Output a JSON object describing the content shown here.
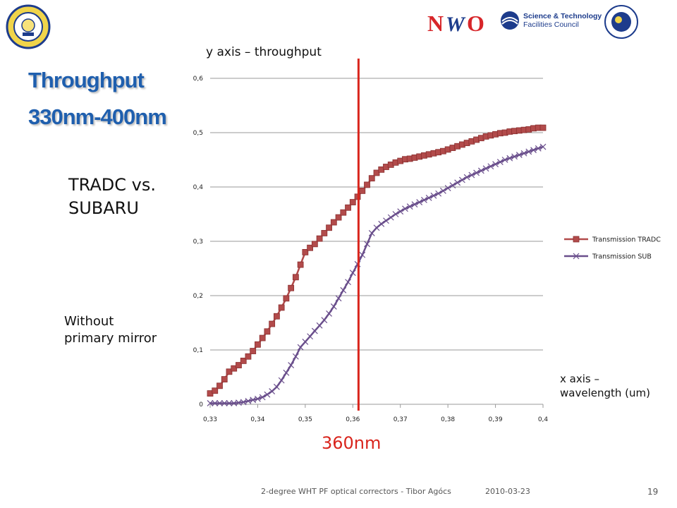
{
  "logos": {
    "left_seal_text": "ISAAC NEWTON GROUP",
    "left_seal_subtext": "LA PALMA",
    "nwo_text": "NWO",
    "stfc_line1": "Science & Technology",
    "stfc_line2": "Facilities Council"
  },
  "slide": {
    "title_line1": "Throughput",
    "title_line2": "330nm-400nm",
    "compare_line1": "TRADC vs.",
    "compare_line2": "SUBARU",
    "note_line1": "Without",
    "note_line2": "primary mirror",
    "y_axis_note": "y axis – throughput",
    "x_axis_note_line1": "x axis –",
    "x_axis_note_line2": "wavelength (um)",
    "marker_label": "360nm"
  },
  "footer": {
    "text": "2-degree WHT PF optical correctors - Tibor Agócs",
    "date": "2010-03-23",
    "page": "19"
  },
  "colors": {
    "tradc": "#b24b4b",
    "tradc_edge": "#8a2f2f",
    "sub": "#6a4f8c",
    "marker": "#d9251d",
    "title": "#1f5fae",
    "grid": "#9a9a9a"
  },
  "chart_data": {
    "type": "line",
    "xlim": [
      0.33,
      0.4
    ],
    "ylim": [
      0,
      0.6
    ],
    "x_ticks": [
      "0,33",
      "0,34",
      "0,35",
      "0,36",
      "0,37",
      "0,38",
      "0,39",
      "0,4"
    ],
    "y_ticks": [
      "0",
      "0,1",
      "0,2",
      "0,3",
      "0,4",
      "0,5",
      "0,6"
    ],
    "legend_position": "right",
    "grid": "horizontal",
    "vertical_marker_x": 0.3612,
    "series": [
      {
        "name": "Transmission TRADC",
        "marker": "square",
        "x": [
          0.33,
          0.331,
          0.332,
          0.333,
          0.334,
          0.335,
          0.336,
          0.337,
          0.338,
          0.339,
          0.34,
          0.341,
          0.342,
          0.343,
          0.344,
          0.345,
          0.346,
          0.347,
          0.348,
          0.349,
          0.35,
          0.351,
          0.352,
          0.353,
          0.354,
          0.355,
          0.356,
          0.357,
          0.358,
          0.359,
          0.36,
          0.361,
          0.362,
          0.363,
          0.364,
          0.365,
          0.366,
          0.367,
          0.368,
          0.369,
          0.37,
          0.371,
          0.372,
          0.373,
          0.374,
          0.375,
          0.376,
          0.377,
          0.378,
          0.379,
          0.38,
          0.381,
          0.382,
          0.383,
          0.384,
          0.385,
          0.386,
          0.387,
          0.388,
          0.389,
          0.39,
          0.391,
          0.392,
          0.393,
          0.394,
          0.395,
          0.396,
          0.397,
          0.398,
          0.399,
          0.4
        ],
        "y": [
          0.02,
          0.025,
          0.034,
          0.046,
          0.06,
          0.066,
          0.072,
          0.08,
          0.088,
          0.098,
          0.11,
          0.122,
          0.134,
          0.148,
          0.162,
          0.178,
          0.195,
          0.214,
          0.234,
          0.257,
          0.28,
          0.288,
          0.295,
          0.305,
          0.315,
          0.325,
          0.335,
          0.344,
          0.353,
          0.362,
          0.372,
          0.382,
          0.393,
          0.404,
          0.416,
          0.426,
          0.432,
          0.437,
          0.441,
          0.445,
          0.448,
          0.451,
          0.452,
          0.454,
          0.456,
          0.458,
          0.46,
          0.462,
          0.464,
          0.466,
          0.469,
          0.472,
          0.475,
          0.478,
          0.481,
          0.484,
          0.487,
          0.49,
          0.493,
          0.495,
          0.497,
          0.499,
          0.5,
          0.502,
          0.503,
          0.504,
          0.505,
          0.506,
          0.508,
          0.509,
          0.509
        ]
      },
      {
        "name": "Transmission SUB",
        "marker": "x",
        "x": [
          0.33,
          0.331,
          0.332,
          0.333,
          0.334,
          0.335,
          0.336,
          0.337,
          0.338,
          0.339,
          0.34,
          0.341,
          0.342,
          0.343,
          0.344,
          0.345,
          0.346,
          0.347,
          0.348,
          0.349,
          0.35,
          0.351,
          0.352,
          0.353,
          0.354,
          0.355,
          0.356,
          0.357,
          0.358,
          0.359,
          0.36,
          0.361,
          0.362,
          0.363,
          0.364,
          0.365,
          0.366,
          0.367,
          0.368,
          0.369,
          0.37,
          0.371,
          0.372,
          0.373,
          0.374,
          0.375,
          0.376,
          0.377,
          0.378,
          0.379,
          0.38,
          0.381,
          0.382,
          0.383,
          0.384,
          0.385,
          0.386,
          0.387,
          0.388,
          0.389,
          0.39,
          0.391,
          0.392,
          0.393,
          0.394,
          0.395,
          0.396,
          0.397,
          0.398,
          0.399,
          0.4
        ],
        "y": [
          0.002,
          0.002,
          0.002,
          0.002,
          0.002,
          0.002,
          0.003,
          0.004,
          0.006,
          0.008,
          0.01,
          0.013,
          0.018,
          0.024,
          0.032,
          0.044,
          0.058,
          0.072,
          0.088,
          0.105,
          0.115,
          0.125,
          0.135,
          0.145,
          0.155,
          0.167,
          0.18,
          0.195,
          0.21,
          0.225,
          0.242,
          0.258,
          0.275,
          0.295,
          0.315,
          0.325,
          0.332,
          0.338,
          0.344,
          0.35,
          0.355,
          0.36,
          0.364,
          0.368,
          0.372,
          0.376,
          0.38,
          0.384,
          0.388,
          0.393,
          0.398,
          0.403,
          0.408,
          0.413,
          0.418,
          0.422,
          0.426,
          0.43,
          0.434,
          0.438,
          0.442,
          0.446,
          0.45,
          0.453,
          0.456,
          0.459,
          0.462,
          0.465,
          0.468,
          0.471,
          0.474
        ]
      }
    ]
  }
}
